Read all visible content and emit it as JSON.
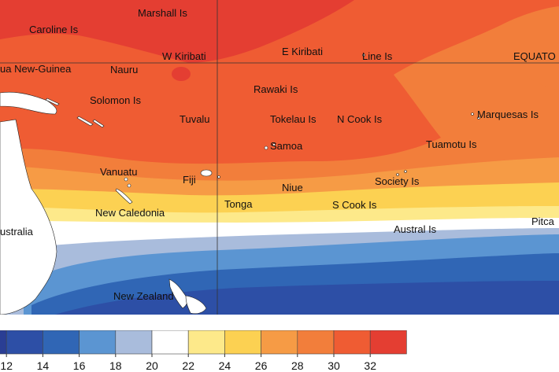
{
  "map": {
    "colors": {
      "c10": "#2a3e94",
      "c12": "#2d4fa6",
      "c14": "#3066b5",
      "c16": "#5b95d2",
      "c18": "#a9bcdc",
      "c20": "#ffffff",
      "c22": "#fde98a",
      "c24": "#fcd152",
      "c26": "#f69b45",
      "c28": "#f27e3b",
      "c30": "#ef5c33",
      "c32": "#e43e32",
      "land": "#ffffff",
      "grid": "#333333"
    },
    "labels": {
      "marshall": "Marshall Is",
      "caroline": "Caroline Is",
      "wkiribati": "W Kiribati",
      "ekiribati": "E Kiribati",
      "line": "Line Is",
      "equator": "EQUATO",
      "png": "ua New-Guinea",
      "nauru": "Nauru",
      "rawaki": "Rawaki Is",
      "solomon": "Solomon Is",
      "tuvalu": "Tuvalu",
      "tokelau": "Tokelau Is",
      "ncook": "N Cook Is",
      "marquesas": "Marquesas Is",
      "samoa": "Samoa",
      "tuamotu": "Tuamotu Is",
      "vanuatu": "Vanuatu",
      "fiji": "Fiji",
      "niue": "Niue",
      "society": "Society Is",
      "tonga": "Tonga",
      "scook": "S Cook Is",
      "newcaledonia": "New Caledonia",
      "australia": "ustralia",
      "austral": "Austral Is",
      "pitcairn": "Pitca",
      "newzealand": "New Zealand"
    }
  },
  "legend": {
    "colors": [
      "#2a3e94",
      "#2d4fa6",
      "#3066b5",
      "#5b95d2",
      "#a9bcdc",
      "#ffffff",
      "#fde98a",
      "#fcd152",
      "#f69b45",
      "#f27e3b",
      "#ef5c33",
      "#e43e32"
    ],
    "ticks": [
      "12",
      "14",
      "16",
      "18",
      "20",
      "22",
      "24",
      "26",
      "28",
      "30",
      "32"
    ]
  }
}
